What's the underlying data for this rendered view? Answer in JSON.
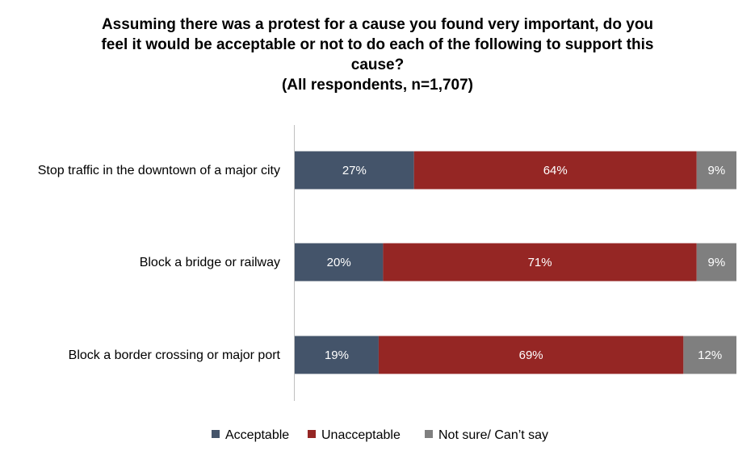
{
  "chart_data": {
    "type": "bar",
    "orientation": "horizontal",
    "stacked": true,
    "title_lines": [
      "Assuming there was a protest for a cause you found very important, do you",
      "feel it would be acceptable or not to do each of the following to support this",
      "cause?",
      "(All respondents, n=1,707)"
    ],
    "categories": [
      "Stop traffic in the downtown of a major city",
      "Block a bridge or railway",
      "Block a border crossing or major port"
    ],
    "series": [
      {
        "name": "Acceptable",
        "color": "#44546a",
        "values": [
          27,
          20,
          19
        ]
      },
      {
        "name": "Unacceptable",
        "color": "#952624",
        "values": [
          64,
          71,
          69
        ]
      },
      {
        "name": "Not sure/ Can’t say",
        "color": "#7f7f7f",
        "values": [
          9,
          9,
          12
        ]
      }
    ],
    "value_suffix": "%",
    "xlim": [
      0,
      100
    ],
    "legend_position": "bottom"
  }
}
